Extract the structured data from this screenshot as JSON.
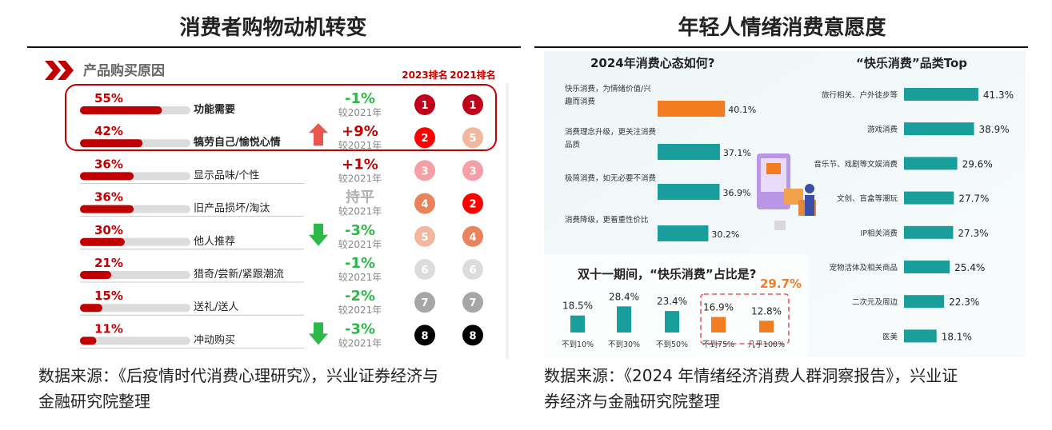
{
  "left": {
    "title": "消费者购物动机转变",
    "header": "产品购买原因",
    "col2023": "2023排名",
    "col2021": "2021排名",
    "source": "数据来源：《后疫情时代消费心理研究》，兴业证券经济与金融研究院整理",
    "source_lines": [
      "数据来源：《后疫情时代消费心理研究》，兴业证券经济与",
      "金融研究院整理"
    ]
  },
  "right": {
    "title": "年轻人情绪消费意愿度",
    "source_lines": [
      "数据来源：《2024 年情绪经济消费人群洞察报告》，兴业证",
      "券经济与金融研究院整理"
    ]
  },
  "colors": {
    "red": "#c00000",
    "green": "#2db84a",
    "orange": "#f47c20",
    "teal": "#1a9e9b",
    "rank_1": "#c0001a",
    "rank_2": "#ff0000",
    "rank_3": "#f4a0a6",
    "rank_4": "#e8835c",
    "rank_5": "#f0b89e",
    "rank_6": "#dcdcdc",
    "rank_7": "#a6a6a6",
    "rank_8": "#000000"
  },
  "chart_data": [
    {
      "type": "bar",
      "title": "产品购买原因",
      "categories": [
        "功能需要",
        "犒劳自己/愉悦心情",
        "显示品味/个性",
        "旧产品损坏/淘汰",
        "他人推荐",
        "猎奇/尝新/紧跟潮流",
        "送礼/送人",
        "冲动购买"
      ],
      "value_labels": [
        "55%",
        "42%",
        "36%",
        "36%",
        "30%",
        "21%",
        "15%",
        "11%"
      ],
      "values": [
        55,
        42,
        36,
        36,
        30,
        21,
        15,
        11
      ],
      "change": [
        "-1%",
        "+9%",
        "+1%",
        "持平",
        "-3%",
        "-1%",
        "-2%",
        "-3%"
      ],
      "change_note": "较2021年",
      "trend": [
        "none",
        "up",
        "none",
        "none",
        "down",
        "none",
        "none",
        "down"
      ],
      "rank_2023": [
        1,
        2,
        3,
        4,
        5,
        6,
        7,
        8
      ],
      "rank_2021": [
        1,
        5,
        3,
        2,
        4,
        6,
        7,
        8
      ],
      "rank_2023_text": [
        "1",
        "2",
        "3",
        "4",
        "5",
        "6",
        "7",
        "8"
      ],
      "rank_2021_text": [
        "1",
        "5",
        "3",
        "2",
        "4",
        "6",
        "7",
        "8"
      ]
    },
    {
      "type": "bar",
      "title": "2024年消费心态如何?",
      "categories": [
        "快乐消费，为情绪价值/兴趣而消费",
        "消费理念升级，更关注消费品质",
        "极简消费，如无必要不消费",
        "消费降级，更看重性价比"
      ],
      "category_lines": [
        [
          "快乐消费，为情绪价值/兴",
          "趣而消费"
        ],
        [
          "消费理念升级，更关注消费",
          "品质"
        ],
        [
          "极简消费，如无必要不消费"
        ],
        [
          "消费降级，更看重性价比"
        ]
      ],
      "values": [
        40.1,
        37.1,
        36.9,
        30.2
      ],
      "value_labels": [
        "40.1%",
        "37.1%",
        "36.9%",
        "30.2%"
      ]
    },
    {
      "type": "bar",
      "title": "双十一期间，“快乐消费”占比是?",
      "highlight_total": "29.7%",
      "categories": [
        "不到10%",
        "不到30%",
        "不到50%",
        "不到75%",
        "几乎100%"
      ],
      "values": [
        18.5,
        28.4,
        23.4,
        16.9,
        12.8
      ],
      "value_labels": [
        "18.5%",
        "28.4%",
        "23.4%",
        "16.9%",
        "12.8%"
      ]
    },
    {
      "type": "bar",
      "title": "“快乐消费”品类Top",
      "categories": [
        "旅行相关、户外徒步等",
        "游戏消费",
        "音乐节、戏剧等文娱消费",
        "文创、盲盒等潮玩",
        "IP相关消费",
        "宠物活体及相关商品",
        "二次元及周边",
        "医美"
      ],
      "values": [
        41.3,
        38.9,
        29.6,
        27.7,
        27.3,
        25.4,
        22.3,
        18.1
      ],
      "value_labels": [
        "41.3%",
        "38.9%",
        "29.6%",
        "27.7%",
        "27.3%",
        "25.4%",
        "22.3%",
        "18.1%"
      ]
    }
  ]
}
